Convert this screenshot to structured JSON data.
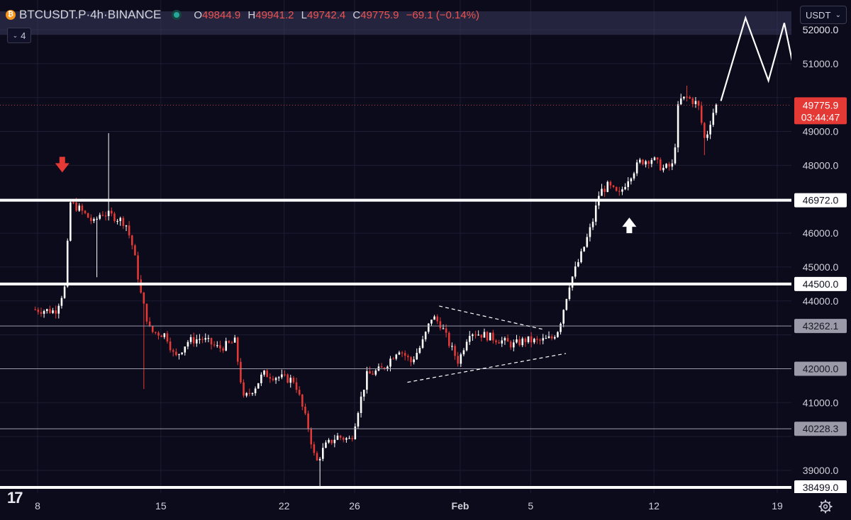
{
  "header": {
    "symbol": "BTCUSDT.P",
    "interval": "4h",
    "exchange": "BINANCE",
    "title_sep": " · ",
    "open_label": "O",
    "open": "49844.9",
    "high_label": "H",
    "high": "49941.2",
    "low_label": "L",
    "low": "49742.4",
    "close_label": "C",
    "close": "49775.9",
    "change": "−69.1 (−0.14%)",
    "indicator_count": "4"
  },
  "currency_selector": "USDT",
  "colors": {
    "background": "#0b0b1c",
    "up": "#ffffff",
    "down": "#e53935",
    "grid": "#1d1d33",
    "axis_text": "#d0d0da"
  },
  "chart_data": {
    "type": "candlestick",
    "symbol": "BTCUSDT.P",
    "timeframe": "4h",
    "ylim": [
      38400,
      52200
    ],
    "y_ticks": [
      39000,
      40000,
      41000,
      42000,
      43000,
      44000,
      45000,
      46000,
      47000,
      48000,
      49000,
      50000,
      51000,
      52000
    ],
    "y_tick_labels": [
      "39000.0",
      "40000.0",
      "41000.0",
      "42000.0",
      "43000.0",
      "44000.0",
      "45000.0",
      "46000.0",
      "47000.0",
      "48000.0",
      "49000.0",
      "50000.0",
      "51000.0",
      "52000.0"
    ],
    "x_range_days": [
      7.7,
      19.9
    ],
    "x_ticks": [
      {
        "label": "8",
        "day": 8
      },
      {
        "label": "15",
        "day": 15
      },
      {
        "label": "22",
        "day": 22
      },
      {
        "label": "26",
        "day": 26
      },
      {
        "label": "Feb",
        "day": 32
      },
      {
        "label": "5",
        "day": 36
      },
      {
        "label": "12",
        "day": 43
      },
      {
        "label": "19",
        "day": 50
      }
    ],
    "price_path_keypoints": [
      [
        7.7,
        43750
      ],
      [
        9.0,
        43700
      ],
      [
        9.55,
        44400
      ],
      [
        9.85,
        46900
      ],
      [
        10.4,
        46700
      ],
      [
        11.2,
        46300
      ],
      [
        11.6,
        46600
      ],
      [
        12.3,
        46500
      ],
      [
        13.0,
        46300
      ],
      [
        13.45,
        45500
      ],
      [
        13.9,
        44100
      ],
      [
        14.4,
        43100
      ],
      [
        15.3,
        43000
      ],
      [
        15.8,
        42300
      ],
      [
        16.5,
        42800
      ],
      [
        17.3,
        42900
      ],
      [
        18.3,
        42600
      ],
      [
        19.2,
        42800
      ],
      [
        19.7,
        41100
      ],
      [
        20.4,
        41500
      ],
      [
        20.8,
        41850
      ],
      [
        22.6,
        41650
      ],
      [
        22.9,
        41100
      ],
      [
        23.4,
        40200
      ],
      [
        23.8,
        39200
      ],
      [
        24.3,
        39700
      ],
      [
        25.0,
        40000
      ],
      [
        25.8,
        39900
      ],
      [
        26.2,
        40800
      ],
      [
        26.7,
        41800
      ],
      [
        27.6,
        42000
      ],
      [
        28.5,
        42600
      ],
      [
        29.2,
        42200
      ],
      [
        29.8,
        42700
      ],
      [
        30.4,
        43550
      ],
      [
        30.9,
        43300
      ],
      [
        31.4,
        42700
      ],
      [
        31.9,
        42200
      ],
      [
        32.5,
        43100
      ],
      [
        33.3,
        43000
      ],
      [
        34.2,
        42850
      ],
      [
        35.0,
        42700
      ],
      [
        35.7,
        42850
      ],
      [
        36.4,
        42800
      ],
      [
        37.2,
        42900
      ],
      [
        37.6,
        43200
      ],
      [
        38.2,
        44500
      ],
      [
        38.9,
        45400
      ],
      [
        39.5,
        46300
      ],
      [
        39.9,
        47200
      ],
      [
        40.4,
        47400
      ],
      [
        41.0,
        47100
      ],
      [
        41.5,
        47600
      ],
      [
        42.2,
        48100
      ],
      [
        42.9,
        48200
      ],
      [
        43.5,
        47900
      ],
      [
        44.1,
        48000
      ],
      [
        44.4,
        49900
      ],
      [
        44.9,
        50000
      ],
      [
        45.5,
        49800
      ],
      [
        45.9,
        48700
      ],
      [
        46.3,
        49500
      ],
      [
        46.55,
        49775.9
      ]
    ],
    "spikes": [
      {
        "day": 12.1,
        "high": 48950
      },
      {
        "day": 11.4,
        "low": 44700
      },
      {
        "day": 14.0,
        "low": 41400
      },
      {
        "day": 24.0,
        "low": 38520
      },
      {
        "day": 45.9,
        "low": 48300
      },
      {
        "day": 44.8,
        "high": 50350
      }
    ],
    "horizontal_levels": [
      {
        "price": 52000,
        "label": "52000.0",
        "style": "band",
        "band_bottom": 51850
      },
      {
        "price": 46972.0,
        "label": "46972.0",
        "style": "thick"
      },
      {
        "price": 44500.0,
        "label": "44500.0",
        "style": "thick"
      },
      {
        "price": 43262.1,
        "label": "43262.1",
        "style": "thin"
      },
      {
        "price": 42000.0,
        "label": "42000.0",
        "style": "thin"
      },
      {
        "price": 40228.3,
        "label": "40228.3",
        "style": "thin"
      },
      {
        "price": 38499.0,
        "label": "38499.0",
        "style": "thick"
      }
    ],
    "current_price": {
      "value": 49775.9,
      "label": "49775.9",
      "countdown": "03:44:47"
    },
    "triangle_pattern": {
      "upper": [
        [
          30.8,
          43850
        ],
        [
          36.8,
          43150
        ]
      ],
      "lower": [
        [
          29.0,
          41600
        ],
        [
          38.0,
          42450
        ]
      ]
    },
    "projection_path": [
      [
        46.8,
        49900
      ],
      [
        48.2,
        52350
      ],
      [
        49.5,
        50500
      ],
      [
        50.4,
        52200
      ],
      [
        50.9,
        50950
      ],
      [
        51.4,
        52150
      ]
    ],
    "projection_arrow_tip": [
      51.3,
      52000
    ],
    "arrows": [
      {
        "direction": "down",
        "color": "#e53935",
        "day": 9.4,
        "price": 48000
      },
      {
        "direction": "up",
        "color": "#ffffff",
        "day": 41.6,
        "price": 46250
      }
    ]
  }
}
